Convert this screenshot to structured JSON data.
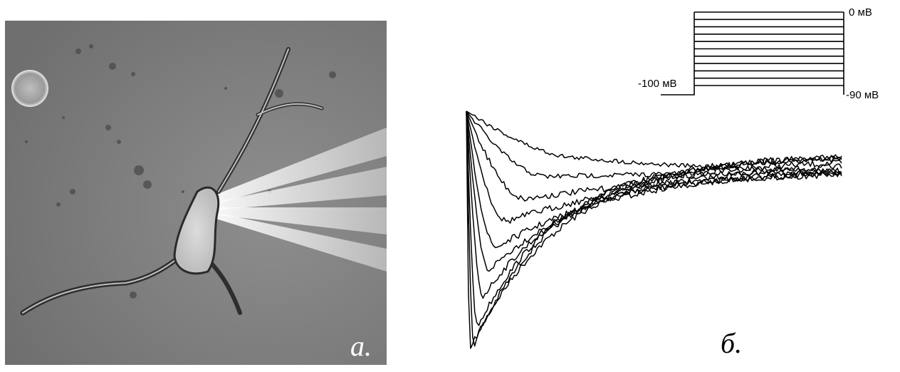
{
  "figure": {
    "panel_a": {
      "label": "a.",
      "content": "phase-contrast micrograph of a neuron with patch pipette"
    },
    "panel_b": {
      "label": "б.",
      "protocol": {
        "top_label": "0 мВ",
        "holding_label": "-100 мВ",
        "bottom_label": "-90 мВ",
        "steps_mV": [
          0,
          -10,
          -20,
          -30,
          -40,
          -50,
          -60,
          -70,
          -80,
          -90
        ]
      },
      "traces": {
        "count": 10,
        "peak_delay_rel": [
          0.01,
          0.02,
          0.03,
          0.045,
          0.06,
          0.08,
          0.11,
          0.16,
          0.22,
          0.32
        ],
        "peak_amplitude_rel": [
          1.0,
          0.98,
          0.89,
          0.74,
          0.61,
          0.5,
          0.37,
          0.26,
          0.15,
          0.06
        ],
        "decay_rel": [
          0.25,
          0.22,
          0.22,
          0.25,
          0.3,
          0.36,
          0.42,
          0.5,
          0.48,
          0.4
        ]
      }
    }
  }
}
